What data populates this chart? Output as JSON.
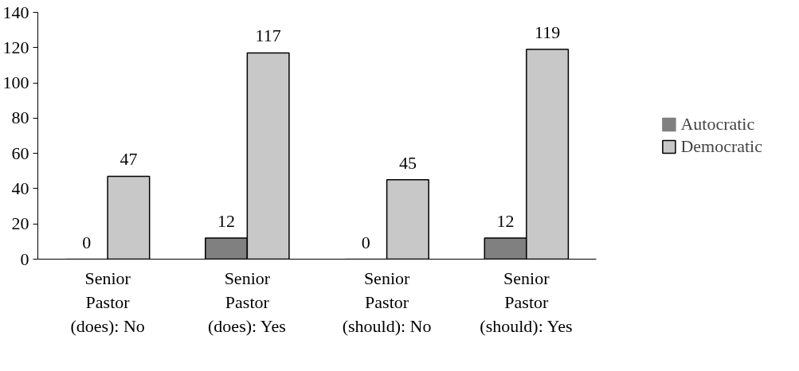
{
  "chart_data": {
    "type": "bar",
    "categories": [
      "Senior\nPastor\n(does): No",
      "Senior\nPastor\n(does): Yes",
      "Senior\nPastor\n(should): No",
      "Senior\nPastor\n(should): Yes"
    ],
    "series": [
      {
        "name": "Autocratic",
        "color": "#808080",
        "values": [
          0,
          12,
          0,
          12
        ]
      },
      {
        "name": "Democratic",
        "color": "#c8c8c8",
        "values": [
          47,
          117,
          45,
          119
        ]
      }
    ],
    "ylim": [
      0,
      140
    ],
    "yticks": [
      0,
      20,
      40,
      60,
      80,
      100,
      120,
      140
    ],
    "grid": false,
    "legend": "right",
    "data_labels": true
  }
}
